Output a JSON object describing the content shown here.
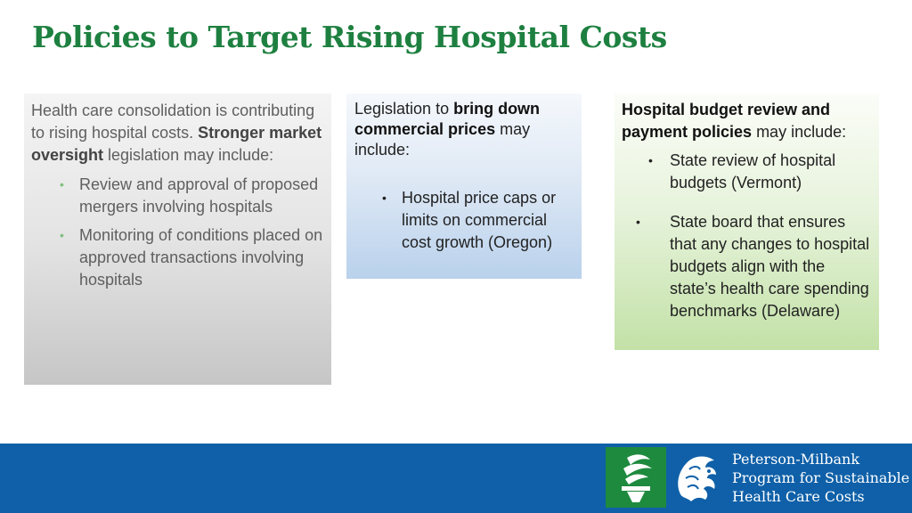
{
  "slide": {
    "title": "Policies to Target Rising Hospital Costs"
  },
  "colors": {
    "title_green": "#1e8040",
    "footer_blue": "#0f60a8",
    "logo_green": "#1e8a3e"
  },
  "panel_left": {
    "intro_1": "Health care consolidation is contributing to rising hospital costs. ",
    "intro_bold": "Stronger market oversight",
    "intro_2": " legislation may include:",
    "bullets": [
      "Review and approval of proposed mergers involving hospitals",
      "Monitoring of conditions placed on approved transactions involving hospitals"
    ]
  },
  "panel_middle": {
    "intro_1": "Legislation to ",
    "intro_bold": "bring down commercial prices",
    "intro_2": " may include:",
    "bullets": [
      "Hospital price caps or limits on commercial cost growth (Oregon)"
    ]
  },
  "panel_right": {
    "intro_bold": "Hospital budget review and payment policies",
    "intro_2": " may include:",
    "bullets": [
      "State review of hospital budgets (Vermont)",
      "State board that ensures that any changes to hospital budgets align with the state’s health care spending benchmarks (Delaware)"
    ]
  },
  "footer": {
    "logos": [
      "torch-logo-icon",
      "lion-logo-icon"
    ],
    "org_line_1": "Peterson-Milbank",
    "org_line_2": "Program for Sustainable",
    "org_line_3": "Health Care Costs"
  }
}
